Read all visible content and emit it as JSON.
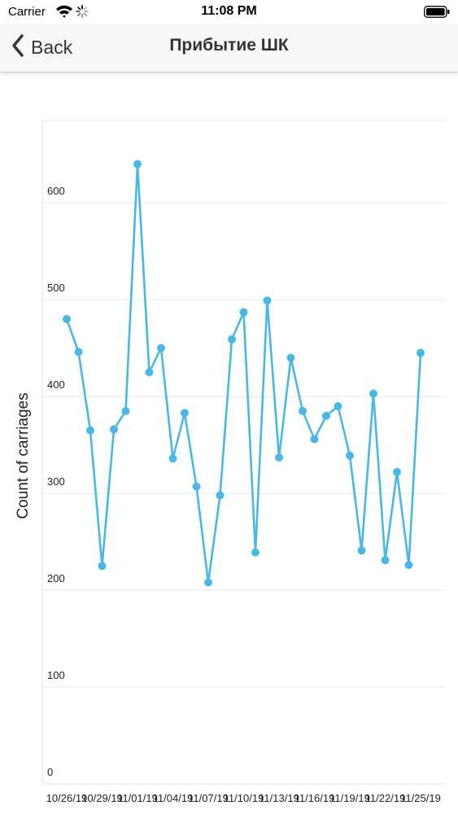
{
  "status_bar": {
    "carrier": "Carrier",
    "time": "11:08 PM"
  },
  "nav": {
    "back_label": "Back",
    "title": "Прибытие ШК"
  },
  "icons": {
    "back": "chevron-left-icon",
    "wifi": "wifi-icon",
    "activity": "spinner-icon",
    "battery": "battery-icon"
  },
  "colors": {
    "series": "#4ab8e4",
    "grid": "#e6e6e6",
    "nav_bg": "#f8f8f8"
  },
  "chart_data": {
    "type": "line",
    "ylabel": "Count of carriages",
    "xlabel": "",
    "ylim": [
      0,
      685
    ],
    "yticks": [
      0,
      100,
      200,
      300,
      400,
      500,
      600
    ],
    "ytick_labels": [
      "0",
      "100",
      "200",
      "300",
      "400",
      "500",
      "600"
    ],
    "xtick_labels": [
      "10/26/19",
      "10/29/19",
      "11/01/19",
      "11/04/19",
      "11/07/19",
      "11/10/19",
      "11/13/19",
      "11/16/19",
      "11/19/19",
      "11/22/19",
      "11/25/19"
    ],
    "xtick_every": 3,
    "grid": true,
    "series": [
      {
        "values": [
          480,
          446,
          365,
          225,
          366,
          385,
          640,
          425,
          450,
          336,
          383,
          307,
          208,
          298,
          459,
          487,
          239,
          499,
          337,
          440,
          385,
          356,
          380,
          390,
          339,
          241,
          403,
          231,
          322,
          226,
          445
        ]
      }
    ]
  }
}
